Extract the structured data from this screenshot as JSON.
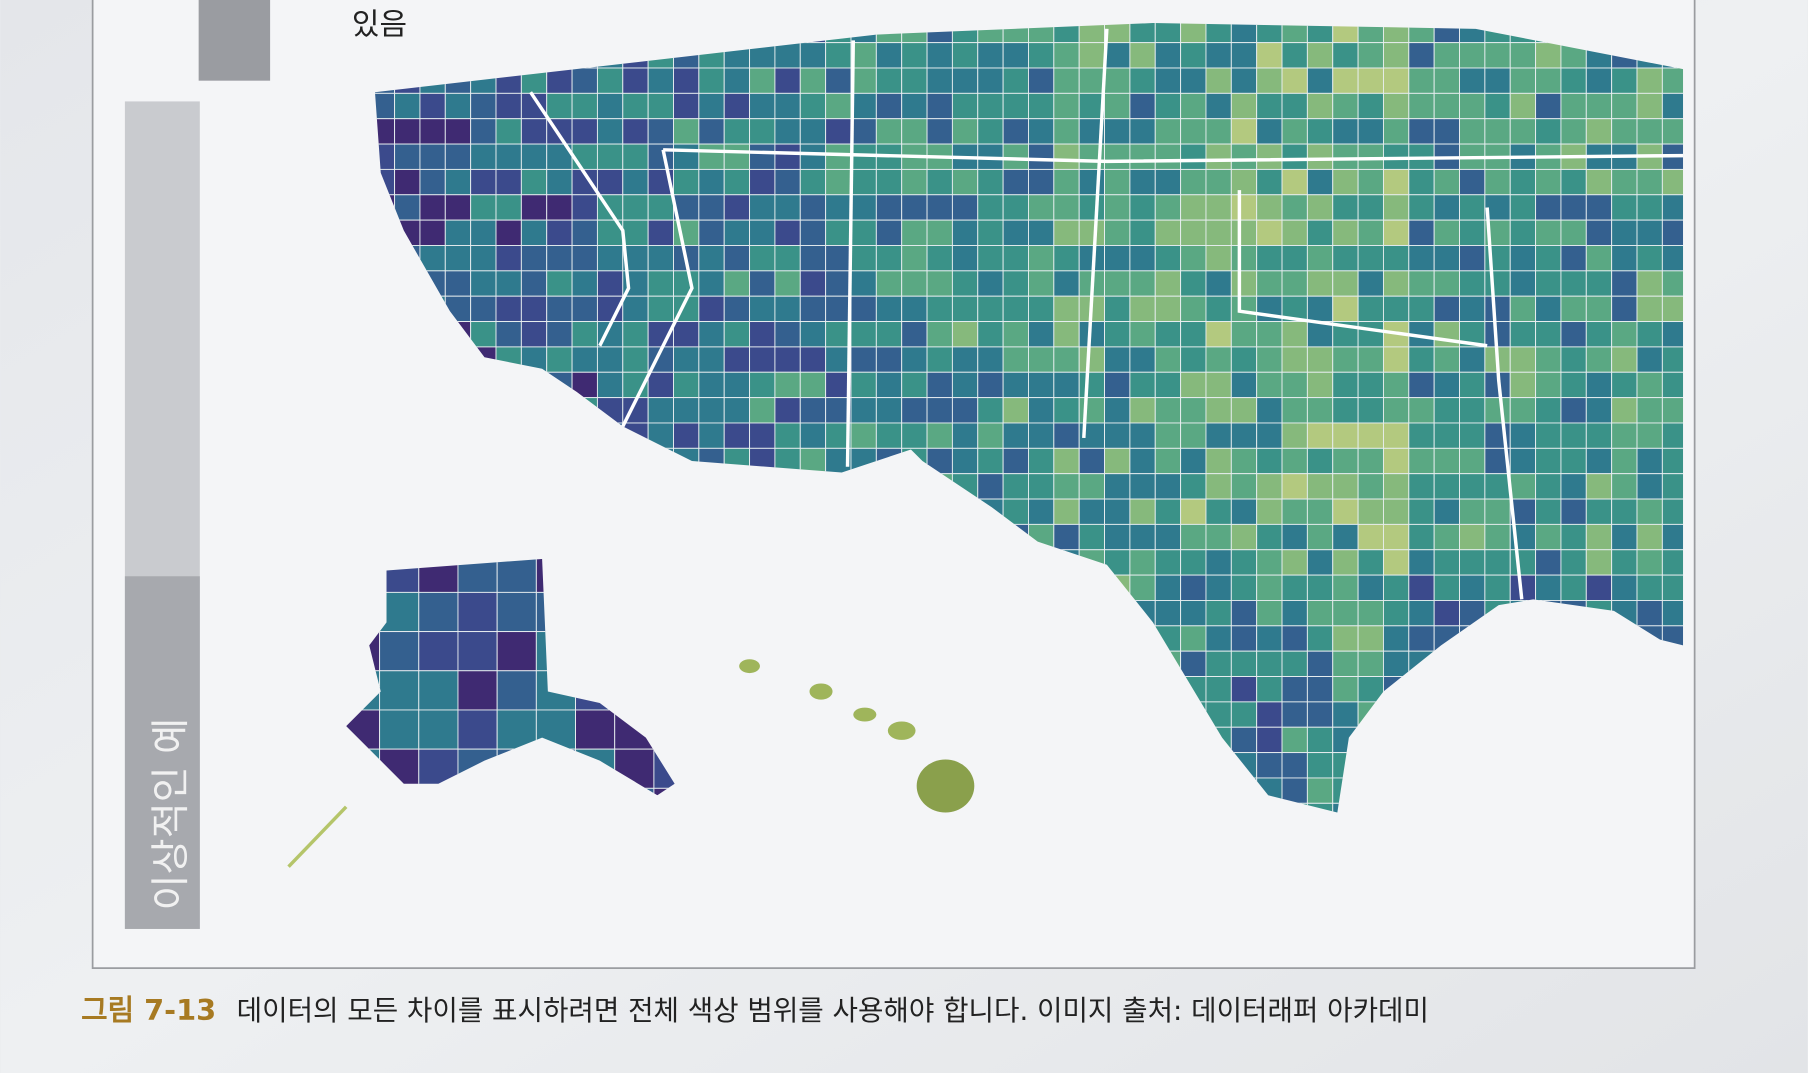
{
  "page": {
    "top_text": "있음",
    "side_tab": "이상적인 예",
    "caption": {
      "label": "그림 7-13",
      "text": "데이터의 모든 차이를 표시하려면 전체 색상 범위를 사용해야 합니다. 이미지 출처: 데이터래퍼 아카데미"
    }
  }
}
